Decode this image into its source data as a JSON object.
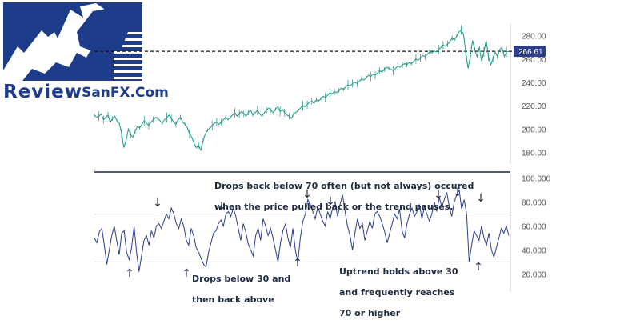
{
  "logo": {
    "text": "ReviewSanFX.Com",
    "word1": "Review",
    "word2": "SanFX.Com",
    "colors": {
      "blue": "#1d3c8a",
      "light": "#ffffff"
    }
  },
  "colors": {
    "price_line": "#2a9d8f",
    "rsi_line": "#2b3f8c",
    "divider": "#1b2340",
    "level_line": "#d9d9d9",
    "axis_text": "#555555",
    "price_badge": "#2b3f8c",
    "annotation_text": "#1e2a3f"
  },
  "annotations": {
    "top": [
      "Drops back below 70 often (but not always) occured",
      "when the price pulled back or the trend pauses."
    ],
    "bottom_left": [
      "Drops below 30 and",
      "then back above"
    ],
    "bottom_right": [
      "Uptrend holds above 30",
      "and frequently reaches",
      "70 or higher"
    ],
    "down_arrow_glyph": "↓",
    "up_arrow_glyph": "↑"
  },
  "chart_data": [
    {
      "type": "line",
      "x_unit": "trading session (no dates shown)",
      "series": [
        {
          "values": [
            212,
            210,
            211,
            213,
            208,
            210,
            212,
            206,
            209,
            211,
            207,
            205,
            196,
            184,
            190,
            200,
            195,
            193,
            198,
            202,
            201,
            204,
            207,
            205,
            203,
            206,
            208,
            210,
            209,
            207,
            205,
            208,
            210,
            212,
            209,
            206,
            204,
            208,
            210,
            206,
            204,
            201,
            196,
            193,
            188,
            184,
            186,
            182,
            190,
            196,
            199,
            201,
            203,
            205,
            206,
            204,
            206,
            208,
            210,
            208,
            210,
            212,
            214,
            211,
            213,
            215,
            213,
            211,
            214,
            216,
            212,
            214,
            216,
            213,
            211,
            214,
            216,
            218,
            216,
            214,
            217,
            219,
            215,
            217,
            214,
            212,
            211,
            209,
            213,
            214,
            216,
            218,
            220,
            219,
            221,
            223,
            224,
            222,
            225,
            224,
            226,
            228,
            227,
            229,
            231,
            230,
            232,
            231,
            233,
            235,
            234,
            236,
            238,
            237,
            239,
            240,
            239,
            241,
            243,
            242,
            244,
            246,
            245,
            247,
            246,
            248,
            250,
            249,
            251,
            253,
            252,
            251,
            250,
            252,
            254,
            253,
            255,
            256,
            255,
            257,
            256,
            258,
            260,
            259,
            261,
            263,
            262,
            264,
            266,
            265,
            267,
            266,
            268,
            270,
            272,
            271,
            273,
            275,
            278,
            276,
            280,
            283,
            285,
            281,
            266,
            252,
            262,
            276,
            268,
            262,
            270,
            258,
            266,
            276,
            262,
            255,
            260,
            266,
            262,
            268,
            270,
            262,
            266,
            266.61
          ]
        }
      ],
      "yticks": [
        "280.00",
        "260.00",
        "240.00",
        "220.00",
        "200.00",
        "180.00"
      ],
      "ylim": [
        170,
        290
      ],
      "reference_line": {
        "value": 266.61,
        "style": "dashed"
      },
      "last_price_label": "266.61",
      "grid": false
    },
    {
      "type": "line",
      "x_unit": "trading session (no dates shown)",
      "series": [
        {
          "values": [
            50,
            46,
            55,
            58,
            44,
            28,
            40,
            52,
            60,
            48,
            36,
            54,
            56,
            38,
            32,
            42,
            60,
            38,
            22,
            35,
            48,
            52,
            44,
            56,
            50,
            60,
            62,
            58,
            64,
            70,
            66,
            75,
            70,
            62,
            58,
            66,
            60,
            48,
            44,
            58,
            52,
            42,
            38,
            33,
            28,
            26,
            38,
            46,
            54,
            56,
            62,
            65,
            60,
            70,
            72,
            68,
            75,
            68,
            58,
            48,
            62,
            55,
            45,
            40,
            35,
            52,
            58,
            48,
            66,
            60,
            52,
            58,
            50,
            40,
            30,
            46,
            56,
            62,
            50,
            42,
            58,
            40,
            30,
            50,
            64,
            70,
            82,
            78,
            72,
            66,
            76,
            70,
            64,
            60,
            72,
            66,
            75,
            80,
            68,
            78,
            86,
            72,
            60,
            52,
            40,
            54,
            66,
            58,
            62,
            48,
            56,
            64,
            58,
            70,
            72,
            68,
            62,
            55,
            46,
            54,
            62,
            70,
            66,
            74,
            56,
            50,
            62,
            70,
            75,
            68,
            72,
            78,
            66,
            76,
            70,
            64,
            70,
            80,
            72,
            84,
            76,
            82,
            88,
            76,
            68,
            80,
            86,
            90,
            74,
            82,
            70,
            30,
            44,
            56,
            52,
            48,
            60,
            50,
            44,
            54,
            40,
            34,
            42,
            50,
            58,
            54,
            60,
            52
          ]
        }
      ],
      "yticks": [
        "100.000",
        "80.000",
        "60.000",
        "40.000",
        "20.000"
      ],
      "ylim": [
        5,
        105
      ],
      "levels": [
        70,
        30
      ],
      "grid": false
    }
  ]
}
